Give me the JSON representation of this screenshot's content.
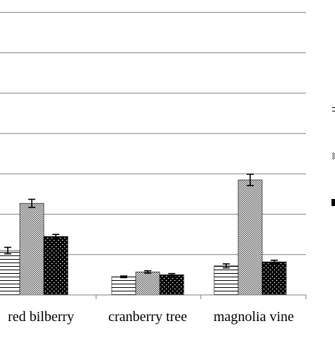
{
  "chart_data": {
    "type": "bar",
    "title": "",
    "xlabel": "",
    "ylabel": "",
    "ylim": [
      0,
      7
    ],
    "grid": true,
    "legend": "right, cropped",
    "categories": [
      "red bilberry",
      "cranberry tree",
      "magnolia vine"
    ],
    "series": [
      {
        "pattern": "horizontal-lines",
        "fill": "#ffffff",
        "stroke": "#000000",
        "values": [
          1.1,
          0.45,
          0.72
        ],
        "errors": [
          0.08,
          0.02,
          0.05
        ]
      },
      {
        "pattern": "dense-dots",
        "fill": "#7f7f7f",
        "stroke": "#000000",
        "values": [
          2.27,
          0.57,
          2.85
        ],
        "errors": [
          0.1,
          0.03,
          0.14
        ]
      },
      {
        "pattern": "white-dots-on-black",
        "fill": "#000000",
        "stroke": "#000000",
        "values": [
          1.45,
          0.5,
          0.82
        ],
        "errors": [
          0.05,
          0.03,
          0.04
        ]
      }
    ]
  },
  "colors": {
    "gridline": "#808080",
    "axis": "#808080",
    "text": "#000000",
    "background": "#ffffff"
  }
}
